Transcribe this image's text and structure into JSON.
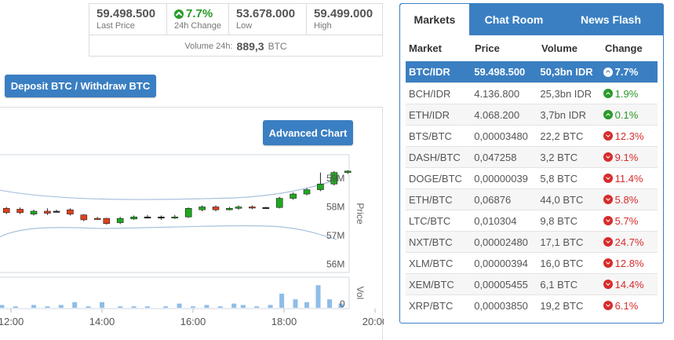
{
  "stats": {
    "last_price": {
      "value": "59.498.500",
      "label": "Last Price"
    },
    "change_24h": {
      "value": "7.7%",
      "label": "24h Change"
    },
    "low": {
      "value": "53.678.000",
      "label": "Low"
    },
    "high": {
      "value": "59.499.000",
      "label": "High"
    },
    "volume_label": "Volume 24h:",
    "volume_value": "889,3",
    "volume_unit": "BTC"
  },
  "buttons": {
    "deposit": "Deposit BTC / Withdraw BTC",
    "advanced_chart": "Advanced Chart"
  },
  "chart_data": {
    "type": "candlestick",
    "price_axis_label": "Price",
    "volume_axis_label": "Vol",
    "y_ticks": [
      "59M",
      "58M",
      "57M",
      "56M"
    ],
    "y_tick_values": [
      59000000,
      58000000,
      57000000,
      56000000
    ],
    "volume_tick": "0",
    "x_ticks": [
      "12:00",
      "14:00",
      "16:00",
      "18:00",
      "20:00"
    ],
    "x_tick_hours": [
      12,
      14,
      16,
      18,
      20
    ],
    "up_color": "#1fa81f",
    "down_color": "#e0401e",
    "candles": [
      {
        "h": 11.9,
        "o": 57.95,
        "c": 57.8,
        "hi": 58.0,
        "lo": 57.75
      },
      {
        "h": 12.2,
        "o": 57.92,
        "c": 57.8,
        "hi": 57.98,
        "lo": 57.75
      },
      {
        "h": 12.5,
        "o": 57.75,
        "c": 57.85,
        "hi": 57.9,
        "lo": 57.7
      },
      {
        "h": 12.8,
        "o": 57.85,
        "c": 57.78,
        "hi": 57.95,
        "lo": 57.72
      },
      {
        "h": 13.0,
        "o": 57.85,
        "c": 57.85,
        "hi": 57.9,
        "lo": 57.8
      },
      {
        "h": 13.3,
        "o": 57.9,
        "c": 57.75,
        "hi": 57.95,
        "lo": 57.7
      },
      {
        "h": 13.6,
        "o": 57.72,
        "c": 57.55,
        "hi": 57.75,
        "lo": 57.5
      },
      {
        "h": 13.9,
        "o": 57.6,
        "c": 57.58,
        "hi": 57.65,
        "lo": 57.55
      },
      {
        "h": 14.1,
        "o": 57.6,
        "c": 57.42,
        "hi": 57.62,
        "lo": 57.38
      },
      {
        "h": 14.4,
        "o": 57.45,
        "c": 57.6,
        "hi": 57.65,
        "lo": 57.4
      },
      {
        "h": 14.7,
        "o": 57.58,
        "c": 57.65,
        "hi": 57.7,
        "lo": 57.55
      },
      {
        "h": 15.0,
        "o": 57.65,
        "c": 57.65,
        "hi": 57.72,
        "lo": 57.6
      },
      {
        "h": 15.3,
        "o": 57.65,
        "c": 57.65,
        "hi": 57.7,
        "lo": 57.55
      },
      {
        "h": 15.6,
        "o": 57.62,
        "c": 57.65,
        "hi": 57.72,
        "lo": 57.58
      },
      {
        "h": 15.9,
        "o": 57.65,
        "c": 57.95,
        "hi": 57.98,
        "lo": 57.62
      },
      {
        "h": 16.2,
        "o": 57.9,
        "c": 58.0,
        "hi": 58.05,
        "lo": 57.85
      },
      {
        "h": 16.5,
        "o": 58.0,
        "c": 57.9,
        "hi": 58.05,
        "lo": 57.85
      },
      {
        "h": 16.8,
        "o": 57.9,
        "c": 57.95,
        "hi": 58.0,
        "lo": 57.88
      },
      {
        "h": 17.0,
        "o": 57.95,
        "c": 58.0,
        "hi": 58.05,
        "lo": 57.9
      },
      {
        "h": 17.3,
        "o": 58.0,
        "c": 57.98,
        "hi": 58.05,
        "lo": 57.92
      },
      {
        "h": 17.6,
        "o": 57.98,
        "c": 57.98,
        "hi": 58.0,
        "lo": 57.95
      },
      {
        "h": 17.9,
        "o": 57.98,
        "c": 58.3,
        "hi": 58.35,
        "lo": 57.95
      },
      {
        "h": 18.2,
        "o": 58.3,
        "c": 58.45,
        "hi": 58.5,
        "lo": 58.25
      },
      {
        "h": 18.5,
        "o": 58.45,
        "c": 58.6,
        "hi": 58.65,
        "lo": 58.4
      },
      {
        "h": 18.8,
        "o": 58.6,
        "c": 58.8,
        "hi": 59.2,
        "lo": 58.55
      },
      {
        "h": 19.1,
        "o": 58.8,
        "c": 59.2,
        "hi": 59.25,
        "lo": 58.75
      },
      {
        "h": 19.4,
        "o": 59.2,
        "c": 59.25,
        "hi": 59.28,
        "lo": 59.15
      }
    ],
    "volumes": [
      {
        "h": 11.8,
        "v": 2
      },
      {
        "h": 12.1,
        "v": 1
      },
      {
        "h": 12.5,
        "v": 2
      },
      {
        "h": 12.8,
        "v": 1
      },
      {
        "h": 13.1,
        "v": 2
      },
      {
        "h": 13.4,
        "v": 4
      },
      {
        "h": 13.7,
        "v": 1
      },
      {
        "h": 14.0,
        "v": 4
      },
      {
        "h": 14.4,
        "v": 1
      },
      {
        "h": 14.7,
        "v": 1
      },
      {
        "h": 15.0,
        "v": 1
      },
      {
        "h": 15.4,
        "v": 1
      },
      {
        "h": 15.7,
        "v": 3
      },
      {
        "h": 16.0,
        "v": 1
      },
      {
        "h": 16.3,
        "v": 2
      },
      {
        "h": 16.6,
        "v": 1
      },
      {
        "h": 16.9,
        "v": 3
      },
      {
        "h": 17.1,
        "v": 2
      },
      {
        "h": 17.4,
        "v": 1
      },
      {
        "h": 17.7,
        "v": 2
      },
      {
        "h": 17.95,
        "v": 10
      },
      {
        "h": 18.25,
        "v": 6
      },
      {
        "h": 18.5,
        "v": 4
      },
      {
        "h": 18.75,
        "v": 16
      },
      {
        "h": 19.0,
        "v": 6
      },
      {
        "h": 19.25,
        "v": 3
      }
    ]
  },
  "markets_panel": {
    "tabs": [
      "Markets",
      "Chat Room",
      "News Flash"
    ],
    "columns": [
      "Market",
      "Price",
      "Volume",
      "Change"
    ],
    "rows": [
      {
        "market": "BTC/IDR",
        "price": "59.498.500",
        "volume": "50,3bn IDR",
        "change": "7.7%",
        "dir": "up",
        "selected": true
      },
      {
        "market": "BCH/IDR",
        "price": "4.136.800",
        "volume": "25,3bn IDR",
        "change": "1.9%",
        "dir": "up"
      },
      {
        "market": "ETH/IDR",
        "price": "4.068.200",
        "volume": "3,7bn IDR",
        "change": "0.1%",
        "dir": "up"
      },
      {
        "market": "BTS/BTC",
        "price": "0,00003480",
        "volume": "22,2 BTC",
        "change": "12.3%",
        "dir": "down"
      },
      {
        "market": "DASH/BTC",
        "price": "0,047258",
        "volume": "3,2 BTC",
        "change": "9.1%",
        "dir": "down"
      },
      {
        "market": "DOGE/BTC",
        "price": "0,00000039",
        "volume": "5,8 BTC",
        "change": "11.4%",
        "dir": "down"
      },
      {
        "market": "ETH/BTC",
        "price": "0,06876",
        "volume": "44,0 BTC",
        "change": "5.8%",
        "dir": "down"
      },
      {
        "market": "LTC/BTC",
        "price": "0,010304",
        "volume": "9,8 BTC",
        "change": "5.7%",
        "dir": "down"
      },
      {
        "market": "NXT/BTC",
        "price": "0,00002480",
        "volume": "17,1 BTC",
        "change": "24.7%",
        "dir": "down"
      },
      {
        "market": "XLM/BTC",
        "price": "0,00000394",
        "volume": "16,0 BTC",
        "change": "12.8%",
        "dir": "down"
      },
      {
        "market": "XEM/BTC",
        "price": "0,00005455",
        "volume": "6,1 BTC",
        "change": "14.4%",
        "dir": "down"
      },
      {
        "market": "XRP/BTC",
        "price": "0,00003850",
        "volume": "19,2 BTC",
        "change": "6.1%",
        "dir": "down"
      }
    ]
  }
}
